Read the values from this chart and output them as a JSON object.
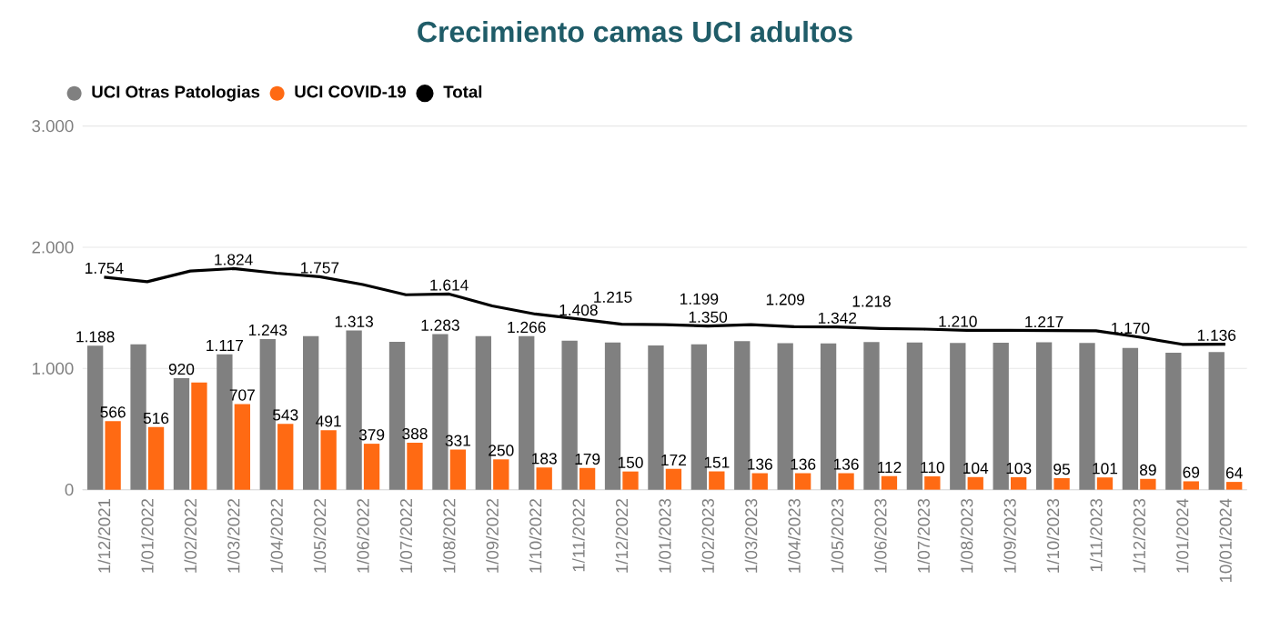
{
  "chart_data": {
    "type": "bar",
    "title": "Crecimiento camas UCI adultos",
    "categories": [
      "1/12/2021",
      "1/01/2022",
      "1/02/2022",
      "1/03/2022",
      "1/04/2022",
      "1/05/2022",
      "1/06/2022",
      "1/07/2022",
      "1/08/2022",
      "1/09/2022",
      "1/10/2022",
      "1/11/2022",
      "1/12/2022",
      "1/01/2023",
      "1/02/2023",
      "1/03/2023",
      "1/04/2023",
      "1/05/2023",
      "1/06/2023",
      "1/07/2023",
      "1/08/2023",
      "1/09/2023",
      "1/10/2023",
      "1/11/2023",
      "1/12/2023",
      "1/01/2024",
      "10/01/2024"
    ],
    "series": [
      {
        "name": "UCI Otras Patologias",
        "color": "#808080",
        "values": [
          1188,
          1200,
          920,
          1117,
          1243,
          1266,
          1313,
          1220,
          1283,
          1266,
          1266,
          1229,
          1215,
          1190,
          1199,
          1225,
          1209,
          1206,
          1218,
          1215,
          1210,
          1212,
          1217,
          1210,
          1170,
          1130,
          1136
        ],
        "value_labels": [
          "1.188",
          null,
          "920",
          "1.117",
          "1.243",
          null,
          "1.313",
          null,
          "1.283",
          null,
          "1.266",
          null,
          "1.215",
          null,
          "1.199",
          null,
          "1.209",
          null,
          "1.218",
          null,
          "1.210",
          null,
          "1.217",
          null,
          "1.170",
          null,
          "1.136"
        ]
      },
      {
        "name": "UCI COVID-19",
        "color": "#ff6a13",
        "values": [
          566,
          516,
          884,
          707,
          543,
          491,
          379,
          388,
          331,
          250,
          183,
          179,
          150,
          172,
          151,
          136,
          136,
          136,
          112,
          110,
          104,
          103,
          95,
          101,
          89,
          69,
          64
        ],
        "value_labels": [
          "566",
          "516",
          null,
          "707",
          "543",
          "491",
          "379",
          "388",
          "331",
          "250",
          "183",
          "179",
          "150",
          "172",
          "151",
          "136",
          "136",
          "136",
          "112",
          "110",
          "104",
          "103",
          "95",
          "101",
          "89",
          "69",
          "64"
        ]
      },
      {
        "name": "Total",
        "type": "line",
        "color": "#000000",
        "values": [
          1754,
          1716,
          1804,
          1824,
          1786,
          1757,
          1692,
          1608,
          1614,
          1516,
          1449,
          1408,
          1365,
          1362,
          1350,
          1361,
          1345,
          1342,
          1330,
          1325,
          1314,
          1315,
          1312,
          1311,
          1259,
          1199,
          1200
        ],
        "value_labels": [
          "1.754",
          null,
          null,
          "1.824",
          null,
          "1.757",
          null,
          null,
          "1.614",
          null,
          null,
          "1.408",
          null,
          null,
          "1.350",
          null,
          null,
          "1.342",
          null,
          null,
          null,
          null,
          null,
          null,
          null,
          null,
          null
        ]
      }
    ],
    "ylim": [
      0,
      3000
    ],
    "yticks": [
      {
        "value": 0,
        "label": "0"
      },
      {
        "value": 1000,
        "label": "1.000"
      },
      {
        "value": 2000,
        "label": "2.000"
      },
      {
        "value": 3000,
        "label": "3.000"
      }
    ],
    "grid": "y",
    "legend": "top left"
  }
}
